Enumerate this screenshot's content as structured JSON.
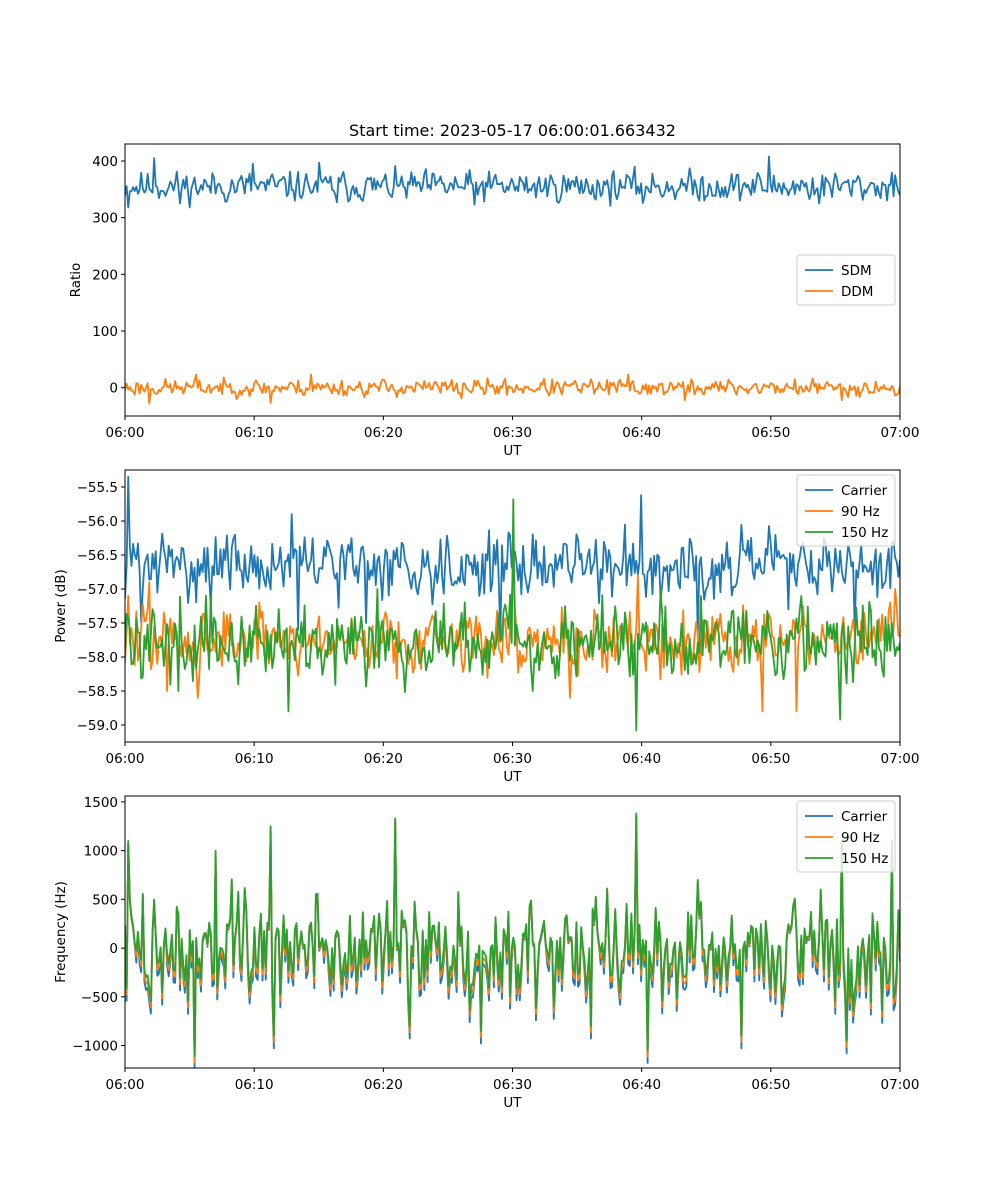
{
  "title": "Start time: 2023-05-17 06:00:01.663432",
  "xticks": [
    "06:00",
    "06:10",
    "06:20",
    "06:30",
    "06:40",
    "06:50",
    "07:00"
  ],
  "chart_data": [
    {
      "type": "line",
      "xlabel": "UT",
      "ylabel": "Ratio",
      "xlim_minutes": [
        0,
        60
      ],
      "ylim": [
        -50,
        430
      ],
      "yticks": [
        "0",
        "100",
        "200",
        "300",
        "400"
      ],
      "yticks_values": [
        0,
        100,
        200,
        300,
        400
      ],
      "legend_loc": "center-right",
      "grid": false,
      "series": [
        {
          "name": "SDM",
          "color": "#1f77b4",
          "mean": 355,
          "amp": 16,
          "seed": 11,
          "spikes": [
            [
              0.3,
              318
            ],
            [
              2.3,
              405
            ],
            [
              4.2,
              325
            ],
            [
              7.8,
              328
            ],
            [
              9.9,
              395
            ],
            [
              15.0,
              397
            ],
            [
              16.4,
              327
            ],
            [
              27.0,
              323
            ],
            [
              40.1,
              326
            ],
            [
              44.5,
              330
            ],
            [
              49.8,
              408
            ],
            [
              53.7,
              325
            ],
            [
              59.6,
              375
            ]
          ]
        },
        {
          "name": "DDM",
          "color": "#ff7f0e",
          "mean": 0,
          "amp": 9,
          "seed": 23,
          "spikes": [
            [
              1.9,
              -28
            ],
            [
              5.5,
              23
            ],
            [
              11.3,
              -27
            ],
            [
              14.4,
              23
            ],
            [
              26.0,
              -19
            ],
            [
              38.9,
              23
            ],
            [
              43.3,
              -22
            ],
            [
              55.5,
              -22
            ],
            [
              59.6,
              -14
            ]
          ]
        }
      ]
    },
    {
      "type": "line",
      "xlabel": "UT",
      "ylabel": "Power (dB)",
      "xlim_minutes": [
        0,
        60
      ],
      "ylim": [
        -59.25,
        -55.25
      ],
      "yticks": [
        "−55.5",
        "−56.0",
        "−56.5",
        "−57.0",
        "−57.5",
        "−58.0",
        "−58.5",
        "−59.0"
      ],
      "yticks_values": [
        -55.5,
        -56.0,
        -56.5,
        -57.0,
        -57.5,
        -58.0,
        -58.5,
        -59.0
      ],
      "legend_loc": "upper-right",
      "grid": false,
      "series": [
        {
          "name": "Carrier",
          "color": "#1f77b4",
          "mean": -56.65,
          "amp": 0.28,
          "seed": 31,
          "spikes": [
            [
              0.2,
              -55.35
            ],
            [
              1.2,
              -57.5
            ],
            [
              12.9,
              -55.9
            ],
            [
              13.4,
              -57.6
            ],
            [
              18.7,
              -57.5
            ],
            [
              29.1,
              -57.7
            ],
            [
              40.0,
              -55.62
            ],
            [
              44.3,
              -57.7
            ],
            [
              51.3,
              -57.3
            ],
            [
              56.5,
              -57.6
            ]
          ]
        },
        {
          "name": "90 Hz",
          "color": "#ff7f0e",
          "mean": -57.75,
          "amp": 0.3,
          "seed": 47,
          "spikes": [
            [
              0.3,
              -57.1
            ],
            [
              1.9,
              -56.9
            ],
            [
              3.3,
              -58.5
            ],
            [
              5.6,
              -58.6
            ],
            [
              30.1,
              -56.5
            ],
            [
              34.5,
              -58.6
            ],
            [
              39.7,
              -56.8
            ],
            [
              49.3,
              -58.8
            ],
            [
              52.0,
              -58.8
            ],
            [
              59.6,
              -57.0
            ]
          ]
        },
        {
          "name": "150 Hz",
          "color": "#2ca02c",
          "mean": -57.75,
          "amp": 0.33,
          "seed": 59,
          "spikes": [
            [
              4.1,
              -58.5
            ],
            [
              12.6,
              -58.8
            ],
            [
              19.5,
              -57.0
            ],
            [
              30.0,
              -55.68
            ],
            [
              31.6,
              -58.5
            ],
            [
              39.6,
              -59.08
            ],
            [
              41.5,
              -57.0
            ],
            [
              55.4,
              -58.92
            ],
            [
              59.4,
              -57.5
            ]
          ]
        }
      ]
    },
    {
      "type": "line",
      "xlabel": "UT",
      "ylabel": "Frequency (Hz)",
      "xlim_minutes": [
        0,
        60
      ],
      "ylim": [
        -1230,
        1560
      ],
      "yticks": [
        "1500",
        "1000",
        "500",
        "0",
        "−500",
        "−1000"
      ],
      "yticks_values": [
        1500,
        1000,
        500,
        0,
        -500,
        -1000
      ],
      "legend_loc": "upper-right",
      "grid": false,
      "base": {
        "mean": 0,
        "amp": 320,
        "seed": 73,
        "spikes": [
          [
            0.3,
            1100
          ],
          [
            5.4,
            -1110
          ],
          [
            7.0,
            1000
          ],
          [
            11.3,
            1250
          ],
          [
            11.5,
            -900
          ],
          [
            20.9,
            1330
          ],
          [
            22.0,
            -800
          ],
          [
            27.6,
            -850
          ],
          [
            36.1,
            -800
          ],
          [
            39.6,
            1380
          ],
          [
            40.4,
            -1050
          ],
          [
            47.7,
            -900
          ],
          [
            55.5,
            1110
          ],
          [
            55.9,
            -950
          ],
          [
            59.4,
            1100
          ]
        ]
      },
      "series": [
        {
          "name": "Carrier",
          "color": "#1f77b4",
          "offset": -80,
          "scale": 1.0
        },
        {
          "name": "90 Hz",
          "color": "#ff7f0e",
          "offset": -40,
          "scale": 1.0
        },
        {
          "name": "150 Hz",
          "color": "#2ca02c",
          "offset": 0,
          "scale": 1.0
        }
      ]
    }
  ]
}
